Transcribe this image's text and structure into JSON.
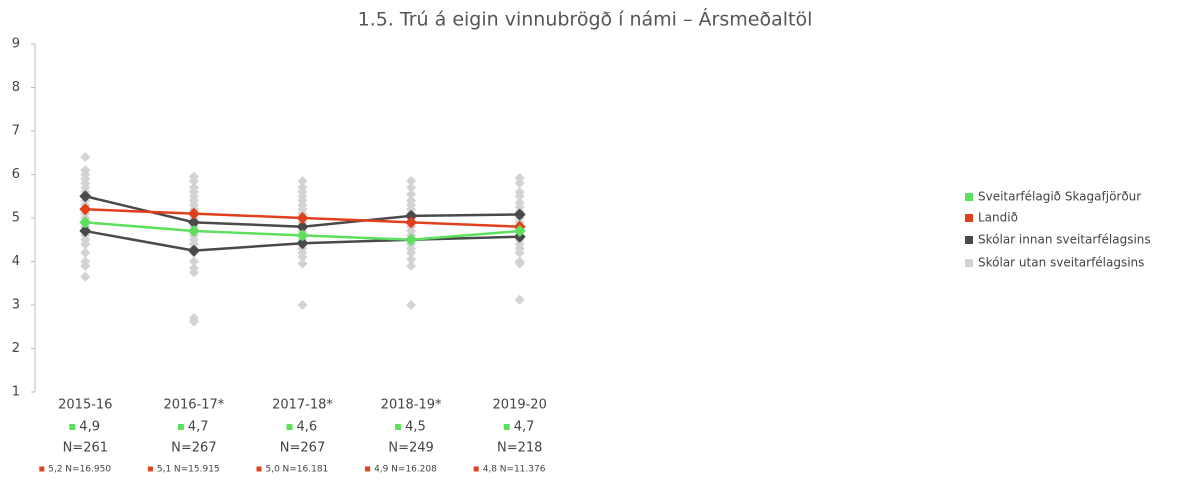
{
  "chart_data": {
    "type": "line",
    "title": "1.5. Trú á eigin vinnubrögð í námi – Ársmeðaltöl",
    "categories": [
      "2015-16",
      "2016-17*",
      "2017-18*",
      "2018-19*",
      "2019-20"
    ],
    "ylim": [
      1,
      9
    ],
    "yticks": [
      1,
      2,
      3,
      4,
      5,
      6,
      7,
      8,
      9
    ],
    "grid": false,
    "legend": "right",
    "series": [
      {
        "name": "Skólar utan sveitarfélagsins",
        "color": "#d3d3d3",
        "points": [
          [
            6.4,
            6.1,
            6.0,
            5.9,
            5.8,
            5.7,
            5.6,
            5.5,
            5.4,
            5.3,
            5.2,
            5.1,
            5.0,
            4.9,
            4.8,
            4.6,
            4.5,
            4.4,
            4.2,
            4.0,
            3.9,
            3.65
          ],
          [
            5.95,
            5.85,
            5.7,
            5.6,
            5.5,
            5.4,
            5.3,
            5.2,
            5.1,
            5.0,
            4.9,
            4.8,
            4.7,
            4.6,
            4.5,
            4.4,
            4.3,
            4.2,
            4.0,
            3.85,
            3.75,
            2.7,
            2.62
          ],
          [
            5.85,
            5.7,
            5.6,
            5.5,
            5.4,
            5.3,
            5.2,
            5.1,
            5.0,
            4.9,
            4.8,
            4.7,
            4.6,
            4.5,
            4.4,
            4.3,
            4.2,
            4.1,
            3.95,
            3.0
          ],
          [
            5.85,
            5.7,
            5.55,
            5.4,
            5.3,
            5.2,
            5.1,
            5.0,
            4.9,
            4.8,
            4.7,
            4.6,
            4.5,
            4.4,
            4.3,
            4.2,
            4.05,
            3.9,
            3.0
          ],
          [
            5.92,
            5.8,
            5.6,
            5.5,
            5.35,
            5.25,
            5.15,
            5.0,
            4.9,
            4.8,
            4.7,
            4.6,
            4.5,
            4.4,
            4.3,
            4.2,
            4.0,
            3.95,
            3.12
          ]
        ]
      },
      {
        "name": "Skólar innan sveitarfélagsins",
        "color": "#4a4a4a",
        "lines": [
          [
            5.5,
            4.9,
            4.8,
            5.05,
            5.08
          ],
          [
            4.7,
            4.25,
            4.42,
            4.5,
            4.57
          ]
        ]
      },
      {
        "name": "Landið",
        "color": "#e0401c",
        "values": [
          5.2,
          5.1,
          5.0,
          4.9,
          4.8
        ],
        "value_labels": [
          "5,2",
          "5,1",
          "5,0",
          "4,9",
          "4,8"
        ],
        "n_labels": [
          "N=16.950",
          "N=15.915",
          "N=16.181",
          "N=16.208",
          "N=11.376"
        ]
      },
      {
        "name": "Sveitarfélagið Skagafjörður",
        "color": "#5ee05e",
        "values": [
          4.9,
          4.7,
          4.6,
          4.5,
          4.7
        ],
        "value_labels": [
          "4,9",
          "4,7",
          "4,6",
          "4,5",
          "4,7"
        ],
        "n_labels": [
          "N=261",
          "N=267",
          "N=267",
          "N=249",
          "N=218"
        ]
      }
    ]
  }
}
